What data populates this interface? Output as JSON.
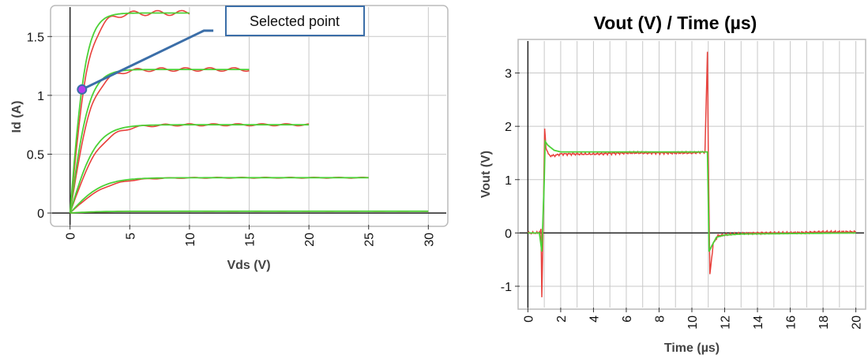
{
  "colors": {
    "measured": "#e8413c",
    "simulated": "#4cd137",
    "annotation": "#3b6ea8",
    "point": "#b53cf0"
  },
  "chart_data": [
    {
      "type": "line",
      "title": "",
      "xlabel": "Vds (V)",
      "ylabel": "Id (A)",
      "xlim": [
        -1.5,
        31.5
      ],
      "ylim": [
        -0.1,
        1.75
      ],
      "xticks": [
        0,
        5,
        10,
        15,
        20,
        25,
        30
      ],
      "yticks": [
        0,
        0.5,
        1,
        1.5
      ],
      "ytick_labels": [
        "0",
        "0.5",
        "1",
        "1.5"
      ],
      "grid": true,
      "curves": [
        {
          "xmax": 30,
          "isat": 0.015,
          "vk": 3.0
        },
        {
          "xmax": 25,
          "isat": 0.3,
          "vk": 3.2
        },
        {
          "xmax": 20,
          "isat": 0.75,
          "vk": 2.6
        },
        {
          "xmax": 15,
          "isat": 1.22,
          "vk": 1.9
        },
        {
          "xmax": 10,
          "isat": 1.7,
          "vk": 1.6
        }
      ],
      "annotation": {
        "text": "Selected point",
        "point": [
          1.0,
          1.05
        ],
        "line_to": [
          12,
          1.55
        ]
      }
    },
    {
      "type": "line",
      "title": "Vout (V) / Time (µs)",
      "xlabel": "Time (µs)",
      "ylabel": "Vout (V)",
      "xlim": [
        -0.5,
        20.5
      ],
      "ylim": [
        -1.4,
        3.6
      ],
      "xticks": [
        0,
        2,
        4,
        6,
        8,
        10,
        12,
        14,
        16,
        18,
        20
      ],
      "yticks": [
        -1,
        0,
        1,
        2,
        3
      ],
      "grid": true,
      "series_measured": [
        [
          0,
          0
        ],
        [
          0.6,
          0
        ],
        [
          0.8,
          0.05
        ],
        [
          0.85,
          -1.2
        ],
        [
          0.95,
          0.5
        ],
        [
          1.02,
          1.95
        ],
        [
          1.1,
          1.6
        ],
        [
          1.3,
          1.45
        ],
        [
          1.6,
          1.45
        ],
        [
          2,
          1.48
        ],
        [
          4,
          1.48
        ],
        [
          6,
          1.5
        ],
        [
          8,
          1.5
        ],
        [
          10,
          1.5
        ],
        [
          10.8,
          1.52
        ],
        [
          10.95,
          3.4
        ],
        [
          11.0,
          1.5
        ],
        [
          11.1,
          -0.78
        ],
        [
          11.3,
          -0.2
        ],
        [
          11.6,
          -0.05
        ],
        [
          12.5,
          -0.02
        ],
        [
          14,
          0
        ],
        [
          16,
          0
        ],
        [
          18,
          0.02
        ],
        [
          20,
          0.02
        ]
      ],
      "series_simulated": [
        [
          0,
          0
        ],
        [
          0.7,
          0
        ],
        [
          0.85,
          -0.35
        ],
        [
          1.0,
          1.0
        ],
        [
          1.05,
          1.72
        ],
        [
          1.2,
          1.65
        ],
        [
          1.6,
          1.55
        ],
        [
          2,
          1.52
        ],
        [
          10.85,
          1.52
        ],
        [
          10.95,
          1.52
        ],
        [
          11.05,
          -0.35
        ],
        [
          11.2,
          -0.25
        ],
        [
          11.5,
          -0.08
        ],
        [
          12,
          -0.04
        ],
        [
          13,
          -0.02
        ],
        [
          20,
          0
        ]
      ]
    }
  ]
}
